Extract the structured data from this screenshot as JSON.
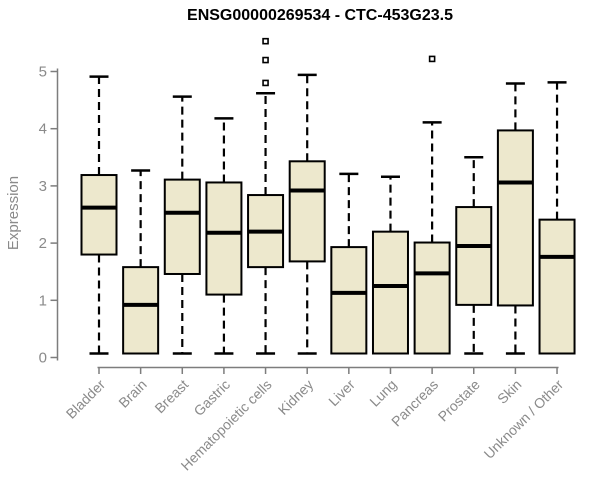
{
  "page": {
    "background": "#ffffff"
  },
  "chart_data": {
    "type": "boxplot",
    "title": "ENSG00000269534 - CTC-453G23.5",
    "xlabel": "",
    "ylabel": "Expression",
    "ylim": [
      0,
      5.6
    ],
    "yticks": [
      0,
      1,
      2,
      3,
      4,
      5
    ],
    "grid": false,
    "legend": "none",
    "categories": [
      "Bladder",
      "Brain",
      "Breast",
      "Gastric",
      "Hematopoietic cells",
      "Kidney",
      "Liver",
      "Lung",
      "Pancreas",
      "Prostate",
      "Skin",
      "Unknown / Other"
    ],
    "series": [
      {
        "name": "Bladder",
        "low": 0.07,
        "q1": 1.8,
        "median": 2.62,
        "q3": 3.19,
        "high": 4.91,
        "outliers": []
      },
      {
        "name": "Brain",
        "low": 0.07,
        "q1": 0.07,
        "median": 0.92,
        "q3": 1.58,
        "high": 3.27,
        "outliers": []
      },
      {
        "name": "Breast",
        "low": 0.07,
        "q1": 1.46,
        "median": 2.53,
        "q3": 3.11,
        "high": 4.56,
        "outliers": []
      },
      {
        "name": "Gastric",
        "low": 0.07,
        "q1": 1.1,
        "median": 2.18,
        "q3": 3.06,
        "high": 4.18,
        "outliers": []
      },
      {
        "name": "Hematopoietic cells",
        "low": 0.07,
        "q1": 1.58,
        "median": 2.2,
        "q3": 2.84,
        "high": 4.62,
        "outliers": [
          4.8,
          5.2,
          5.53
        ]
      },
      {
        "name": "Kidney",
        "low": 0.07,
        "q1": 1.68,
        "median": 2.92,
        "q3": 3.43,
        "high": 4.94,
        "outliers": []
      },
      {
        "name": "Liver",
        "low": 0.07,
        "q1": 0.07,
        "median": 1.13,
        "q3": 1.93,
        "high": 3.21,
        "outliers": []
      },
      {
        "name": "Lung",
        "low": 0.07,
        "q1": 0.07,
        "median": 1.25,
        "q3": 2.2,
        "high": 3.16,
        "outliers": []
      },
      {
        "name": "Pancreas",
        "low": 0.07,
        "q1": 0.07,
        "median": 1.47,
        "q3": 2.01,
        "high": 4.11,
        "outliers": [
          5.22
        ]
      },
      {
        "name": "Prostate",
        "low": 0.07,
        "q1": 0.92,
        "median": 1.95,
        "q3": 2.63,
        "high": 3.5,
        "outliers": []
      },
      {
        "name": "Skin",
        "low": 0.07,
        "q1": 0.91,
        "median": 3.06,
        "q3": 3.97,
        "high": 4.79,
        "outliers": []
      },
      {
        "name": "Unknown / Other",
        "low": 0.07,
        "q1": 0.07,
        "median": 1.76,
        "q3": 2.41,
        "high": 4.81,
        "outliers": []
      }
    ],
    "colors": {
      "box_fill": "#EDE8CD",
      "box_stroke": "#000000",
      "median": "#000000",
      "whisker": "#000000",
      "outlier": "#000000",
      "axis": "#7d7d7d",
      "tick_label": "#8a8a8a",
      "title": "#000000"
    }
  }
}
